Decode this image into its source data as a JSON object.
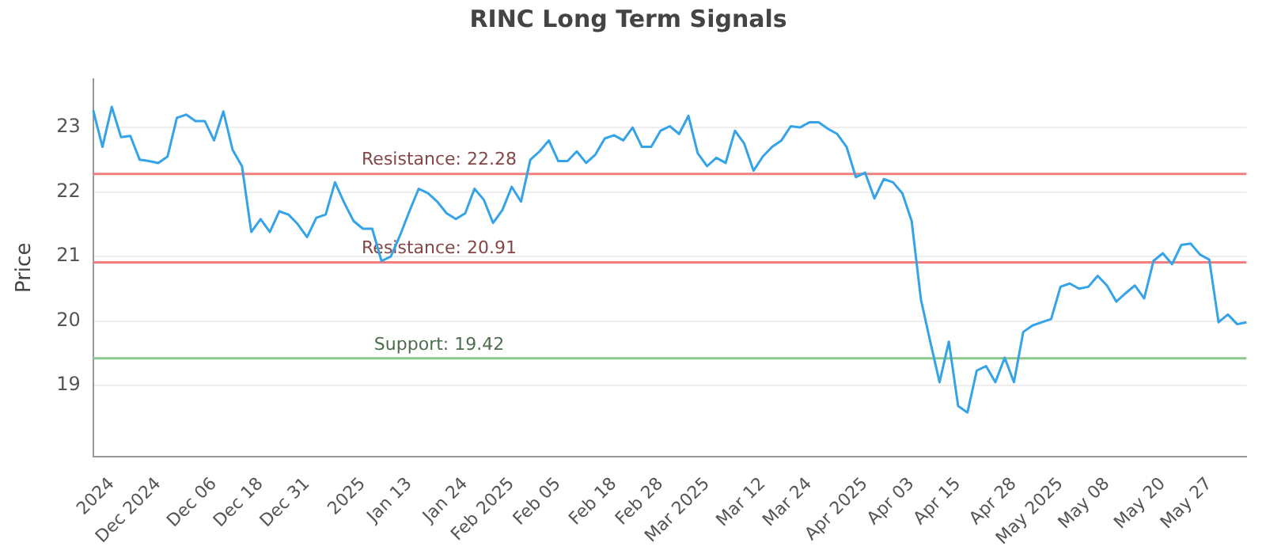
{
  "chart_data": {
    "type": "line",
    "title": "RINC Long Term Signals",
    "ylabel": "Price",
    "categories": [
      null,
      null,
      "2024",
      null,
      null,
      null,
      null,
      "Dec 2024",
      null,
      null,
      null,
      null,
      null,
      "Dec 06",
      null,
      null,
      null,
      null,
      "Dec 18",
      null,
      null,
      null,
      null,
      "Dec 31",
      null,
      null,
      null,
      null,
      null,
      "2025",
      null,
      null,
      null,
      null,
      "Jan 13",
      null,
      null,
      null,
      null,
      null,
      "Jan 24",
      null,
      null,
      null,
      null,
      "Feb 2025",
      null,
      null,
      null,
      null,
      "Feb 05",
      null,
      null,
      null,
      null,
      null,
      "Feb 18",
      null,
      null,
      null,
      null,
      "Feb 28",
      null,
      null,
      null,
      null,
      "Mar 2025",
      null,
      null,
      null,
      null,
      null,
      "Mar 12",
      null,
      null,
      null,
      null,
      "Mar 24",
      null,
      null,
      null,
      null,
      null,
      "Apr 2025",
      null,
      null,
      null,
      null,
      "Apr 03",
      null,
      null,
      null,
      null,
      "Apr 15",
      null,
      null,
      null,
      null,
      null,
      "Apr 28",
      null,
      null,
      null,
      null,
      "May 2025",
      null,
      null,
      null,
      null,
      "May 08",
      null,
      null,
      null,
      null,
      null,
      "May 20",
      null,
      null,
      null,
      null,
      "May 27",
      null,
      null,
      null,
      null
    ],
    "series": [
      {
        "color": "#35a3e8",
        "values": [
          23.27,
          22.7,
          23.32,
          22.85,
          22.87,
          22.5,
          22.48,
          22.45,
          22.55,
          23.15,
          23.2,
          23.1,
          23.1,
          22.8,
          23.25,
          22.65,
          22.4,
          21.38,
          21.58,
          21.38,
          21.7,
          21.65,
          21.5,
          21.3,
          21.6,
          21.65,
          22.15,
          21.83,
          21.55,
          21.43,
          21.43,
          20.93,
          21.0,
          21.33,
          21.7,
          22.05,
          21.98,
          21.85,
          21.67,
          21.58,
          21.67,
          22.05,
          21.88,
          21.52,
          21.72,
          22.08,
          21.85,
          22.5,
          22.63,
          22.8,
          22.48,
          22.48,
          22.63,
          22.45,
          22.58,
          22.83,
          22.88,
          22.8,
          23.0,
          22.7,
          22.7,
          22.95,
          23.02,
          22.9,
          23.18,
          22.6,
          22.4,
          22.53,
          22.45,
          22.95,
          22.75,
          22.33,
          22.55,
          22.7,
          22.8,
          23.02,
          23.0,
          23.08,
          23.08,
          22.98,
          22.9,
          22.7,
          22.23,
          22.3,
          21.9,
          22.2,
          22.15,
          21.98,
          21.55,
          20.33,
          19.68,
          19.05,
          19.68,
          18.68,
          18.58,
          19.23,
          19.3,
          19.05,
          19.43,
          19.05,
          19.83,
          19.93,
          19.98,
          20.03,
          20.53,
          20.58,
          20.5,
          20.53,
          20.7,
          20.55,
          20.3,
          20.43,
          20.55,
          20.35,
          20.93,
          21.05,
          20.88,
          21.18,
          21.2,
          21.03,
          20.95,
          19.98,
          20.1,
          19.95,
          19.98
        ]
      }
    ],
    "ylim": [
      17.9,
      23.75
    ],
    "yticks": [
      19,
      20,
      21,
      22,
      23
    ],
    "grid": "y",
    "legend": false,
    "marker": "none",
    "line_style": "solid",
    "ref_lines": [
      {
        "axis": "y",
        "value": 22.28,
        "label": "Resistance: 22.28",
        "color": "#f08080"
      },
      {
        "axis": "y",
        "value": 20.91,
        "label": "Resistance: 20.91",
        "color": "#f08080"
      },
      {
        "axis": "y",
        "value": 19.42,
        "label": "Support: 19.42",
        "color": "#8cc68c"
      }
    ]
  }
}
